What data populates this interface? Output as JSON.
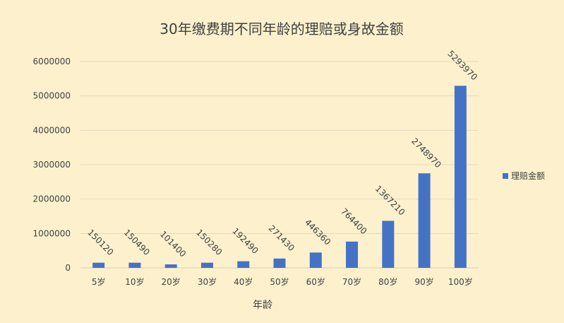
{
  "chart_data": {
    "type": "bar",
    "title": "30年缴费期不同年龄的理赔或身故金额",
    "xlabel": "年龄",
    "ylabel": "",
    "ylim": [
      0,
      6000000
    ],
    "yticks": [
      0,
      1000000,
      2000000,
      3000000,
      4000000,
      5000000,
      6000000
    ],
    "categories": [
      "5岁",
      "10岁",
      "20岁",
      "30岁",
      "40岁",
      "50岁",
      "60岁",
      "70岁",
      "80岁",
      "90岁",
      "100岁"
    ],
    "series": [
      {
        "name": "理赔金额",
        "color": "#4472c4",
        "values": [
          150120,
          150490,
          101400,
          150280,
          192490,
          271430,
          446360,
          764400,
          1367210,
          2748970,
          5293970
        ]
      }
    ],
    "grid": true,
    "legend_position": "right",
    "data_labels_rotated": true
  }
}
